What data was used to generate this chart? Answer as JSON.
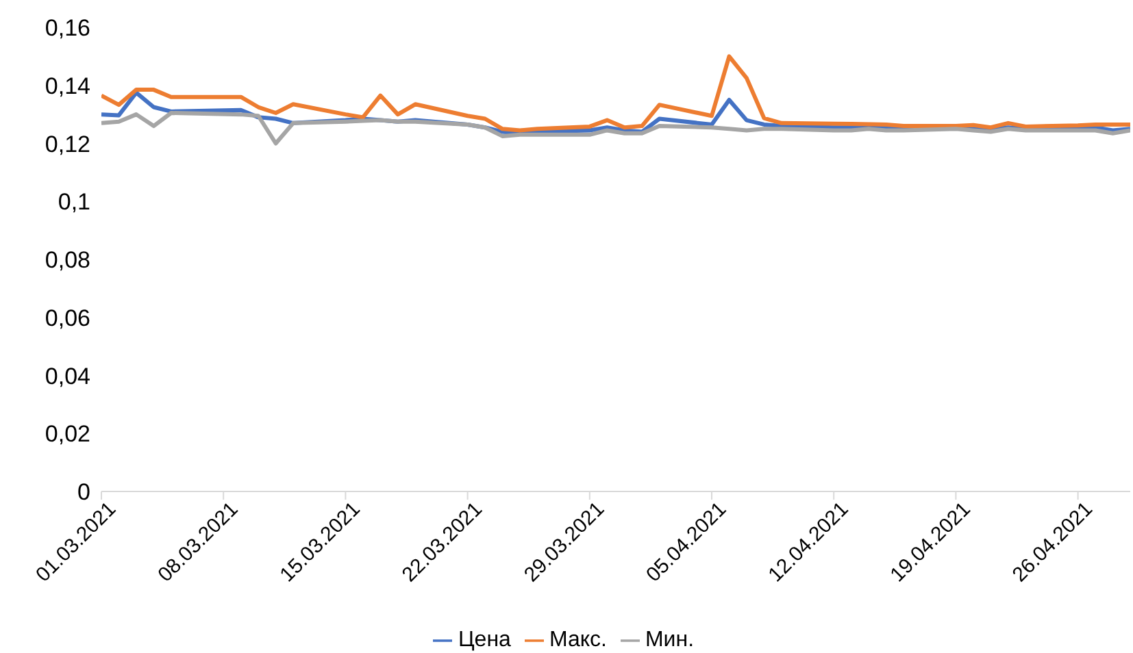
{
  "chart_data": {
    "type": "line",
    "x": [
      "2021-03-01",
      "2021-03-02",
      "2021-03-03",
      "2021-03-04",
      "2021-03-05",
      "2021-03-09",
      "2021-03-10",
      "2021-03-11",
      "2021-03-12",
      "2021-03-15",
      "2021-03-16",
      "2021-03-17",
      "2021-03-18",
      "2021-03-19",
      "2021-03-22",
      "2021-03-23",
      "2021-03-24",
      "2021-03-25",
      "2021-03-26",
      "2021-03-29",
      "2021-03-30",
      "2021-03-31",
      "2021-04-01",
      "2021-04-02",
      "2021-04-05",
      "2021-04-06",
      "2021-04-07",
      "2021-04-08",
      "2021-04-09",
      "2021-04-12",
      "2021-04-13",
      "2021-04-14",
      "2021-04-15",
      "2021-04-16",
      "2021-04-19",
      "2021-04-20",
      "2021-04-21",
      "2021-04-22",
      "2021-04-23",
      "2021-04-26",
      "2021-04-27",
      "2021-04-28",
      "2021-04-29"
    ],
    "series": [
      {
        "name": "Цена",
        "color": "#4472c4",
        "values": [
          0.13,
          0.1297,
          0.1375,
          0.1325,
          0.131,
          0.1315,
          0.129,
          0.1285,
          0.127,
          0.128,
          0.1285,
          0.128,
          0.1275,
          0.128,
          0.1265,
          0.1255,
          0.124,
          0.1235,
          0.124,
          0.1245,
          0.1255,
          0.1245,
          0.124,
          0.1285,
          0.1265,
          0.135,
          0.128,
          0.1265,
          0.126,
          0.1255,
          0.1255,
          0.1255,
          0.1255,
          0.125,
          0.1258,
          0.1255,
          0.125,
          0.1255,
          0.125,
          0.125,
          0.1255,
          0.1245,
          0.125
        ]
      },
      {
        "name": "Макс.",
        "color": "#ed7d31",
        "values": [
          0.1365,
          0.1333,
          0.1385,
          0.1385,
          0.136,
          0.136,
          0.1325,
          0.1305,
          0.1335,
          0.13,
          0.129,
          0.1365,
          0.13,
          0.1335,
          0.1295,
          0.1285,
          0.125,
          0.1245,
          0.125,
          0.1258,
          0.128,
          0.1255,
          0.126,
          0.1333,
          0.1295,
          0.15,
          0.1425,
          0.1287,
          0.127,
          0.1268,
          0.1267,
          0.1266,
          0.1265,
          0.126,
          0.126,
          0.1263,
          0.1255,
          0.127,
          0.1258,
          0.1262,
          0.1265,
          0.1265,
          0.1265
        ]
      },
      {
        "name": "Мин.",
        "color": "#a5a5a5",
        "values": [
          0.127,
          0.1275,
          0.13,
          0.126,
          0.1305,
          0.13,
          0.1295,
          0.12,
          0.127,
          0.1275,
          0.1278,
          0.128,
          0.1275,
          0.1275,
          0.1265,
          0.1255,
          0.1225,
          0.123,
          0.123,
          0.123,
          0.1245,
          0.1235,
          0.1235,
          0.126,
          0.1255,
          0.125,
          0.1245,
          0.125,
          0.125,
          0.1245,
          0.1245,
          0.125,
          0.1245,
          0.1245,
          0.125,
          0.1245,
          0.124,
          0.125,
          0.1245,
          0.1245,
          0.1245,
          0.1235,
          0.1245
        ]
      }
    ],
    "xlim": [
      "2021-03-01",
      "2021-04-29"
    ],
    "xticks": [
      {
        "value": "2021-03-01",
        "label": "01.03.2021"
      },
      {
        "value": "2021-03-08",
        "label": "08.03.2021"
      },
      {
        "value": "2021-03-15",
        "label": "15.03.2021"
      },
      {
        "value": "2021-03-22",
        "label": "22.03.2021"
      },
      {
        "value": "2021-03-29",
        "label": "29.03.2021"
      },
      {
        "value": "2021-04-05",
        "label": "05.04.2021"
      },
      {
        "value": "2021-04-12",
        "label": "12.04.2021"
      },
      {
        "value": "2021-04-19",
        "label": "19.04.2021"
      },
      {
        "value": "2021-04-26",
        "label": "26.04.2021"
      }
    ],
    "ylim": [
      0,
      0.16
    ],
    "yticks": [
      0,
      {
        "value": 0.02,
        "label": "0,02"
      },
      {
        "value": 0.04,
        "label": "0,04"
      },
      {
        "value": 0.06,
        "label": "0,06"
      },
      {
        "value": 0.08,
        "label": "0,08"
      },
      {
        "value": 0.1,
        "label": "0,1"
      },
      {
        "value": 0.12,
        "label": "0,12"
      },
      {
        "value": 0.14,
        "label": "0,14"
      },
      {
        "value": 0.16,
        "label": "0,16"
      }
    ],
    "legend": "bottom",
    "marker": "none",
    "line_style": "solid"
  }
}
